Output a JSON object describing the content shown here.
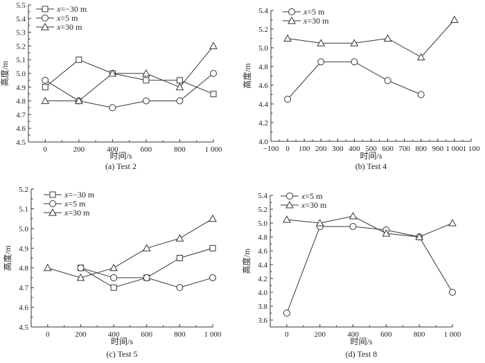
{
  "chart_data": [
    {
      "type": "line",
      "caption": "(a) Test 2",
      "xlabel": "时间/s",
      "ylabel": "高度/m",
      "xlim": [
        -100,
        1000
      ],
      "ylim": [
        4.5,
        5.5
      ],
      "xticks": [
        0,
        200,
        400,
        600,
        800,
        1000
      ],
      "xtick_labels": [
        "0",
        "200",
        "400",
        "600",
        "800",
        "1 000"
      ],
      "yticks": [
        4.5,
        4.6,
        4.7,
        4.8,
        4.9,
        5.0,
        5.1,
        5.2,
        5.3,
        5.4,
        5.5
      ],
      "ytick_labels": [
        "4.5",
        "4.6",
        "4.7",
        "4.8",
        "4.9",
        "5.0",
        "5.1",
        "5.2",
        "5.3",
        "5.4",
        "5.5"
      ],
      "legend_position": "top-left",
      "series": [
        {
          "name": "x=−30 m",
          "marker": "square",
          "x": [
            0,
            200,
            400,
            600,
            800,
            1000
          ],
          "values": [
            4.9,
            5.1,
            5.0,
            4.95,
            4.95,
            4.85
          ]
        },
        {
          "name": "x=5 m",
          "marker": "circle",
          "x": [
            0,
            200,
            400,
            600,
            800,
            1000
          ],
          "values": [
            4.95,
            4.8,
            4.75,
            4.8,
            4.8,
            5.0
          ]
        },
        {
          "name": "x=30 m",
          "marker": "triangle",
          "x": [
            0,
            200,
            400,
            600,
            800,
            1000
          ],
          "values": [
            4.8,
            4.8,
            5.0,
            5.0,
            4.9,
            5.2
          ]
        }
      ]
    },
    {
      "type": "line",
      "caption": "(b) Test 4",
      "xlabel": "时间/s",
      "ylabel": "高度/m",
      "xlim": [
        -100,
        1100
      ],
      "ylim": [
        4.0,
        5.4
      ],
      "xticks": [
        -100,
        0,
        100,
        200,
        300,
        400,
        500,
        600,
        700,
        800,
        900,
        1000,
        1100
      ],
      "xtick_labels": [
        "−100",
        "0",
        "100",
        "200",
        "300",
        "400",
        "500",
        "600",
        "700",
        "800",
        "900",
        "1 000",
        "1 100"
      ],
      "yticks": [
        4.0,
        4.2,
        4.4,
        4.6,
        4.8,
        5.0,
        5.2,
        5.4
      ],
      "ytick_labels": [
        "4.0",
        "4.2",
        "4.4",
        "4.6",
        "4.8",
        "5.0",
        "5.2",
        "5.4"
      ],
      "legend_position": "top-left",
      "series": [
        {
          "name": "x=5 m",
          "marker": "circle",
          "x": [
            0,
            200,
            400,
            600,
            800
          ],
          "values": [
            4.45,
            4.85,
            4.85,
            4.65,
            4.5
          ]
        },
        {
          "name": "x=30 m",
          "marker": "triangle",
          "x": [
            0,
            200,
            400,
            600,
            800,
            1000
          ],
          "values": [
            5.1,
            5.05,
            5.05,
            5.1,
            4.9,
            5.3
          ]
        }
      ]
    },
    {
      "type": "line",
      "caption": "(c) Test 5",
      "xlabel": "时间/s",
      "ylabel": "高度/m",
      "xlim": [
        -100,
        1000
      ],
      "ylim": [
        4.5,
        5.2
      ],
      "xticks": [
        0,
        200,
        400,
        600,
        800,
        1000
      ],
      "xtick_labels": [
        "0",
        "200",
        "400",
        "600",
        "800",
        "1 000"
      ],
      "yticks": [
        4.5,
        4.6,
        4.7,
        4.8,
        4.9,
        5.0,
        5.1,
        5.2
      ],
      "ytick_labels": [
        "4.5",
        "4.6",
        "4.7",
        "4.8",
        "4.9",
        "5.0",
        "5.1",
        "5.2"
      ],
      "legend_position": "top-left",
      "series": [
        {
          "name": "x=−30 m",
          "marker": "square",
          "x": [
            200,
            400,
            600,
            800,
            1000
          ],
          "values": [
            4.8,
            4.7,
            4.75,
            4.85,
            4.9
          ]
        },
        {
          "name": "x=5 m",
          "marker": "circle",
          "x": [
            200,
            400,
            600,
            800,
            1000
          ],
          "values": [
            4.8,
            4.75,
            4.75,
            4.7,
            4.75
          ]
        },
        {
          "name": "x=30 m",
          "marker": "triangle",
          "x": [
            0,
            200,
            400,
            600,
            800,
            1000
          ],
          "values": [
            4.8,
            4.75,
            4.8,
            4.9,
            4.95,
            5.05
          ]
        }
      ]
    },
    {
      "type": "line",
      "caption": "(d) Test 8",
      "xlabel": "时间/s",
      "ylabel": "高度/m",
      "xlim": [
        -100,
        1000
      ],
      "ylim": [
        3.5,
        5.4
      ],
      "xticks": [
        0,
        200,
        400,
        600,
        800,
        1000
      ],
      "xtick_labels": [
        "0",
        "200",
        "400",
        "600",
        "800",
        "1 000"
      ],
      "yticks": [
        3.6,
        3.8,
        4.0,
        4.2,
        4.4,
        4.6,
        4.8,
        5.0,
        5.2,
        5.4
      ],
      "ytick_labels": [
        "3.6",
        "3.8",
        "4.0",
        "4.2",
        "4.4",
        "4.6",
        "4.8",
        "5.0",
        "5.2",
        "5.4"
      ],
      "legend_position": "top-left",
      "series": [
        {
          "name": "x=5 m",
          "marker": "circle",
          "x": [
            0,
            200,
            400,
            600,
            800,
            1000
          ],
          "values": [
            3.7,
            4.95,
            4.95,
            4.9,
            4.8,
            4.0
          ]
        },
        {
          "name": "x=30 m",
          "marker": "triangle",
          "x": [
            0,
            200,
            400,
            600,
            800,
            1000
          ],
          "values": [
            5.05,
            5.0,
            5.1,
            4.85,
            4.8,
            5.0
          ]
        }
      ]
    }
  ]
}
